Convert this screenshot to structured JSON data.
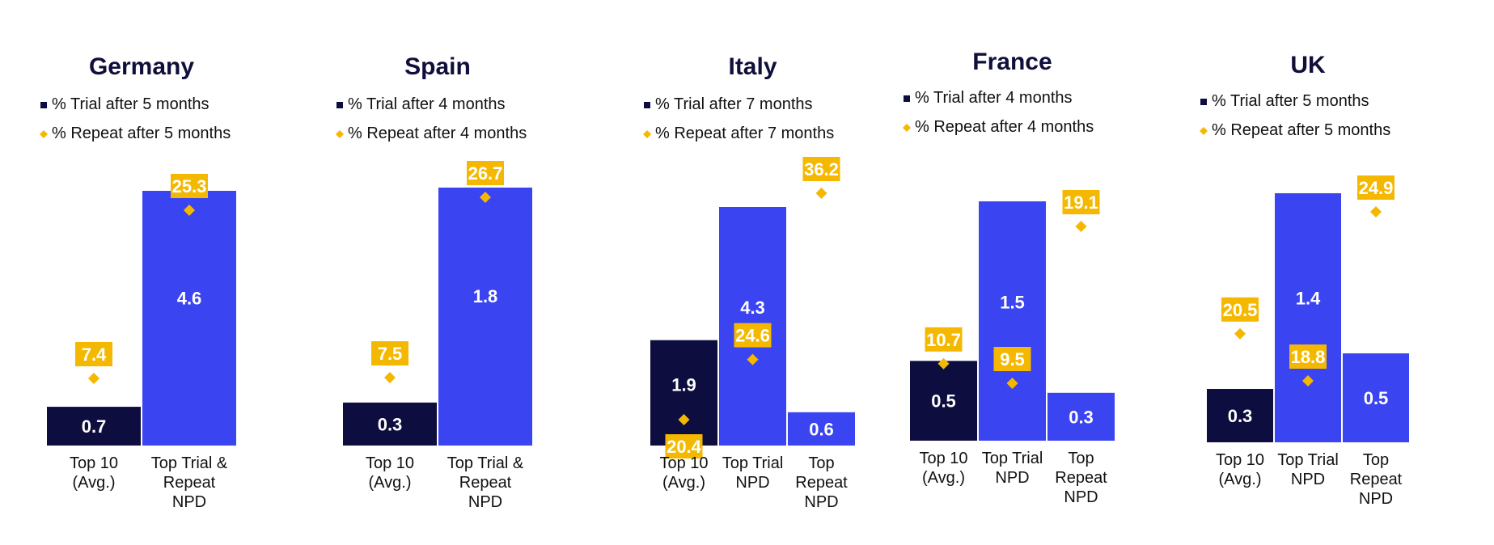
{
  "colors": {
    "trial_top10": "#0d0d3f",
    "trial_npd": "#3a44f0",
    "repeat": "#f5b800",
    "title": "#0f0f3a"
  },
  "chart_data": [
    {
      "type": "bar",
      "title": "Germany",
      "legend": [
        "% Trial after 5 months",
        "% Repeat after 5 months"
      ],
      "categories": [
        [
          "Top 10",
          "(Avg.)"
        ],
        [
          "Top Trial &",
          "Repeat",
          "NPD"
        ]
      ],
      "series": [
        {
          "name": "% Trial after 5 months",
          "values": [
            0.7,
            4.6
          ]
        },
        {
          "name": "% Repeat after 5 months",
          "values": [
            7.4,
            25.3
          ]
        }
      ]
    },
    {
      "type": "bar",
      "title": "Spain",
      "legend": [
        "% Trial after 4 months",
        "% Repeat after 4 months"
      ],
      "categories": [
        [
          "Top 10",
          "(Avg.)"
        ],
        [
          "Top Trial &",
          "Repeat",
          "NPD"
        ]
      ],
      "series": [
        {
          "name": "% Trial after 4 months",
          "values": [
            0.3,
            1.8
          ]
        },
        {
          "name": "% Repeat after 4 months",
          "values": [
            7.5,
            26.7
          ]
        }
      ]
    },
    {
      "type": "bar",
      "title": "Italy",
      "legend": [
        "% Trial after 7 months",
        "% Repeat after 7 months"
      ],
      "categories": [
        [
          "Top 10",
          "(Avg.)"
        ],
        [
          "Top Trial",
          "NPD"
        ],
        [
          "Top",
          "Repeat",
          "NPD"
        ]
      ],
      "series": [
        {
          "name": "% Trial after 7 months",
          "values": [
            1.9,
            4.3,
            0.6
          ]
        },
        {
          "name": "% Repeat after 7 months",
          "values": [
            20.4,
            24.6,
            36.2
          ]
        }
      ]
    },
    {
      "type": "bar",
      "title": "France",
      "legend": [
        "% Trial after 4 months",
        "% Repeat after 4 months"
      ],
      "categories": [
        [
          "Top 10",
          "(Avg.)"
        ],
        [
          "Top Trial",
          "NPD"
        ],
        [
          "Top",
          "Repeat",
          "NPD"
        ]
      ],
      "series": [
        {
          "name": "% Trial after 4 months",
          "values": [
            0.5,
            1.5,
            0.3
          ]
        },
        {
          "name": "% Repeat after 4 months",
          "values": [
            10.7,
            9.5,
            19.1
          ]
        }
      ]
    },
    {
      "type": "bar",
      "title": "UK",
      "legend": [
        "% Trial after 5 months",
        "% Repeat after 5 months"
      ],
      "categories": [
        [
          "Top 10",
          "(Avg.)"
        ],
        [
          "Top Trial",
          "NPD"
        ],
        [
          "Top",
          "Repeat",
          "NPD"
        ]
      ],
      "series": [
        {
          "name": "% Trial after 5 months",
          "values": [
            0.3,
            1.4,
            0.5
          ]
        },
        {
          "name": "% Repeat after 5 months",
          "values": [
            20.5,
            18.8,
            24.9
          ]
        }
      ]
    }
  ]
}
